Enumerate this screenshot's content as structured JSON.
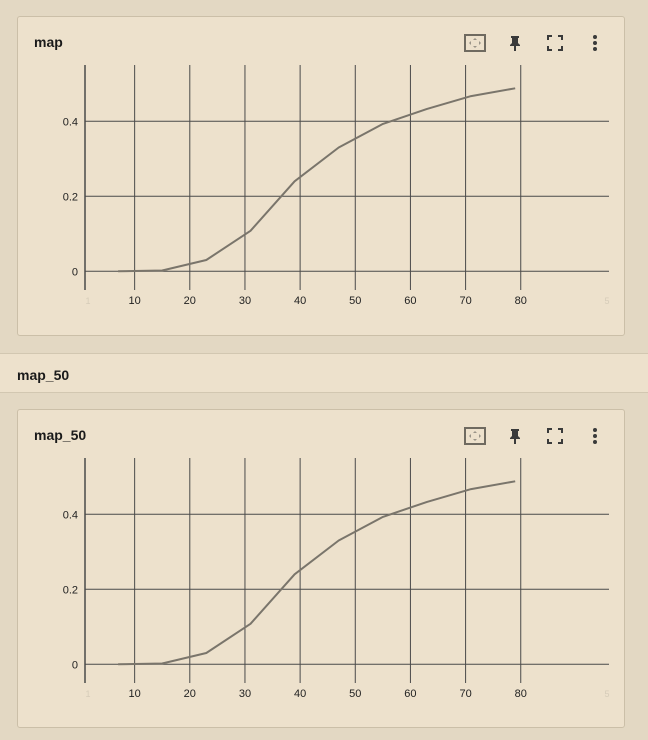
{
  "cards": [
    {
      "title": "map"
    },
    {
      "title": "map_50"
    }
  ],
  "section": {
    "title": "map_50"
  },
  "toolbar": {
    "icons": [
      "fit-domain-icon",
      "pin-icon",
      "fullscreen-icon",
      "more-vert-icon"
    ]
  },
  "colors": {
    "line": "#7a756b",
    "grid": "#4a4a4a",
    "background": "#ede1cc"
  },
  "chart_data": [
    {
      "type": "line",
      "title": "map",
      "xlabel": "",
      "ylabel": "",
      "xlim": [
        1,
        96
      ],
      "ylim": [
        -0.05,
        0.55
      ],
      "xticks": [
        "10",
        "20",
        "30",
        "40",
        "50",
        "60",
        "70",
        "80"
      ],
      "yticks": [
        "0",
        "0.2",
        "0.4"
      ],
      "x_range_labels": [
        "1",
        "5"
      ],
      "series": [
        {
          "x": [
            7,
            15,
            23,
            31,
            39,
            47,
            55,
            63,
            71,
            79
          ],
          "y": [
            0.0,
            0.002,
            0.03,
            0.108,
            0.24,
            0.33,
            0.393,
            0.433,
            0.467,
            0.488
          ]
        }
      ]
    },
    {
      "type": "line",
      "title": "map_50",
      "xlabel": "",
      "ylabel": "",
      "xlim": [
        1,
        96
      ],
      "ylim": [
        -0.05,
        0.55
      ],
      "xticks": [
        "10",
        "20",
        "30",
        "40",
        "50",
        "60",
        "70",
        "80"
      ],
      "yticks": [
        "0",
        "0.2",
        "0.4"
      ],
      "x_range_labels": [
        "1",
        "5"
      ],
      "series": [
        {
          "x": [
            7,
            15,
            23,
            31,
            39,
            47,
            55,
            63,
            71,
            79
          ],
          "y": [
            0.0,
            0.002,
            0.03,
            0.108,
            0.24,
            0.33,
            0.393,
            0.433,
            0.467,
            0.488
          ]
        }
      ]
    }
  ]
}
